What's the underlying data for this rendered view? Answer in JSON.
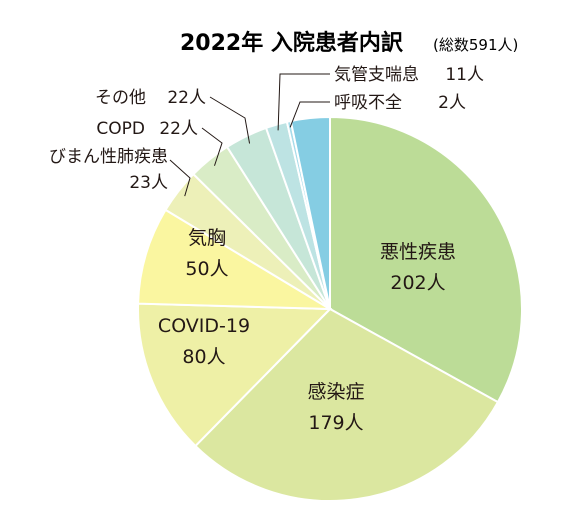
{
  "chart_data": {
    "type": "pie",
    "title": "2022年 入院患者内訳",
    "subtitle": "(総数591人)",
    "unit": "人",
    "slices": [
      {
        "label": "悪性疾患",
        "value": 202,
        "value_text": "202人",
        "color": "#bcdc97"
      },
      {
        "label": "感染症",
        "value": 179,
        "value_text": "179人",
        "color": "#dbe7a0"
      },
      {
        "label": "COVID-19",
        "value": 80,
        "value_text": "80人",
        "color": "#eef0a6"
      },
      {
        "label": "気胸",
        "value": 50,
        "value_text": "50人",
        "color": "#faf6a0"
      },
      {
        "label": "びまん性肺疾患",
        "value": 23,
        "value_text": "23人",
        "color": "#edf0b8"
      },
      {
        "label": "COPD",
        "value": 22,
        "value_text": "22人",
        "color": "#d9ecc6"
      },
      {
        "label": "その他",
        "value": 22,
        "value_text": "22人",
        "color": "#c6e6d8"
      },
      {
        "label": "気管支喘息",
        "value": 11,
        "value_text": "11人",
        "color": "#bde3e3"
      },
      {
        "label": "呼吸不全",
        "value": 2,
        "value_text": "2人",
        "color": "#a7dbe9"
      },
      {
        "label": "",
        "value": 0,
        "value_text": "",
        "color": "#85cde3"
      }
    ]
  }
}
